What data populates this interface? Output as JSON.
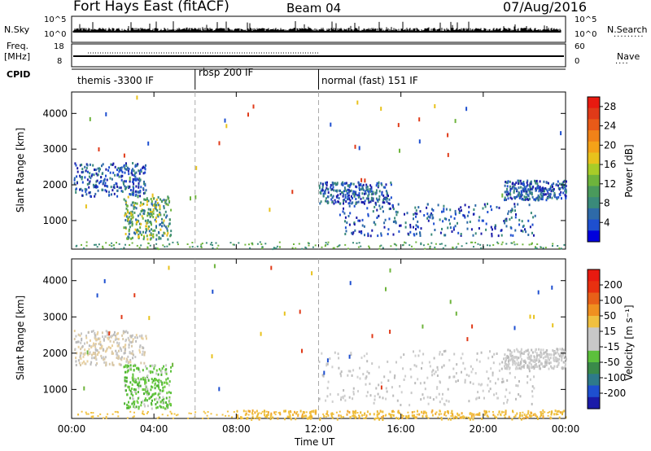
{
  "header": {
    "title": "Fort Hays East (fitACF)",
    "beam": "Beam 04",
    "date": "07/Aug/2016"
  },
  "strip_panels": {
    "nsky_label": "N.Sky",
    "nsky_ticks": [
      "10^5",
      "10^0"
    ],
    "nsearch_label": "N.Search",
    "nsearch_ticks": [
      "10^5",
      "10^0"
    ],
    "freq_label": "Freq.",
    "freq_unit": "[MHz]",
    "freq_ticks": [
      "18",
      "8"
    ],
    "nave_label": "Nave",
    "nave_ticks": [
      "60",
      "0"
    ],
    "cpid_label": "CPID"
  },
  "cpid_segments": [
    {
      "label": "themis -3300 IF",
      "start_hour": 0,
      "end_hour": 6
    },
    {
      "label": "rbsp 200 IF",
      "start_hour": 6,
      "end_hour": 12
    },
    {
      "label": "normal (fast) 151 IF",
      "start_hour": 12,
      "end_hour": 24
    }
  ],
  "chart_data": [
    {
      "type": "heatmap",
      "title": "",
      "xlabel": "Time UT",
      "ylabel": "Slant Range [km]",
      "xlim": [
        0,
        24
      ],
      "ylim": [
        200,
        4600
      ],
      "x_ticks": [
        "00:00",
        "04:00",
        "08:00",
        "12:00",
        "16:00",
        "20:00",
        "00:00"
      ],
      "y_ticks": [
        1000,
        2000,
        3000,
        4000
      ],
      "colorbar": {
        "label": "Power [dB]",
        "ticks": [
          "4",
          "8",
          "12",
          "16",
          "20",
          "24",
          "28"
        ],
        "range": [
          0,
          30
        ],
        "colors": [
          "#0000dd",
          "#1e4fd0",
          "#2e6aa8",
          "#3a8a7a",
          "#4a9a5c",
          "#6eb43c",
          "#a8cc28",
          "#e8c21c",
          "#f4a218",
          "#f08218",
          "#e85a18",
          "#e03a18",
          "#e81a10"
        ]
      },
      "scatter_regions": [
        {
          "t0": 0.1,
          "t1": 3.6,
          "r0": 1700,
          "r1": 2650,
          "level": "low"
        },
        {
          "t0": 2.5,
          "t1": 4.8,
          "r0": 500,
          "r1": 1700,
          "level": "mid"
        },
        {
          "t0": 13.0,
          "t1": 22.5,
          "r0": 600,
          "r1": 1500,
          "level": "low"
        },
        {
          "t0": 12.0,
          "t1": 15.5,
          "r0": 1500,
          "r1": 2100,
          "level": "low"
        },
        {
          "t0": 21.0,
          "t1": 24.0,
          "r0": 1600,
          "r1": 2150,
          "level": "low"
        }
      ],
      "dashed_lines_hours": [
        6,
        12
      ]
    },
    {
      "type": "heatmap",
      "title": "",
      "xlabel": "Time UT",
      "ylabel": "Slant Range [km]",
      "xlim": [
        0,
        24
      ],
      "ylim": [
        200,
        4600
      ],
      "x_ticks": [
        "00:00",
        "04:00",
        "08:00",
        "12:00",
        "16:00",
        "20:00",
        "00:00"
      ],
      "y_ticks": [
        1000,
        2000,
        3000,
        4000
      ],
      "colorbar": {
        "label": "Velocity [m s⁻¹]",
        "ticks": [
          "200",
          "100",
          "50",
          "15",
          "-15",
          "-50",
          "-100",
          "-200"
        ],
        "range": [
          -250,
          250
        ],
        "colors": [
          "#1a1aa8",
          "#1e4fd0",
          "#2e7a8a",
          "#3a8a4a",
          "#5cc03c",
          "#c8c8c8",
          "#c8c8c8",
          "#f0c040",
          "#f09020",
          "#e86018",
          "#e83010",
          "#e81a10"
        ]
      },
      "scatter_regions": [
        {
          "t0": 0.1,
          "t1": 3.6,
          "r0": 1700,
          "r1": 2650,
          "level": "grey-tan"
        },
        {
          "t0": 2.5,
          "t1": 4.8,
          "r0": 500,
          "r1": 1700,
          "level": "green"
        },
        {
          "t0": 12.0,
          "t1": 22.5,
          "r0": 600,
          "r1": 2100,
          "level": "grey"
        },
        {
          "t0": 8.0,
          "t1": 24.0,
          "r0": 200,
          "r1": 450,
          "level": "orange"
        },
        {
          "t0": 21.0,
          "t1": 24.0,
          "r0": 1600,
          "r1": 2150,
          "level": "grey"
        }
      ],
      "dashed_lines_hours": [
        6,
        12
      ]
    }
  ]
}
